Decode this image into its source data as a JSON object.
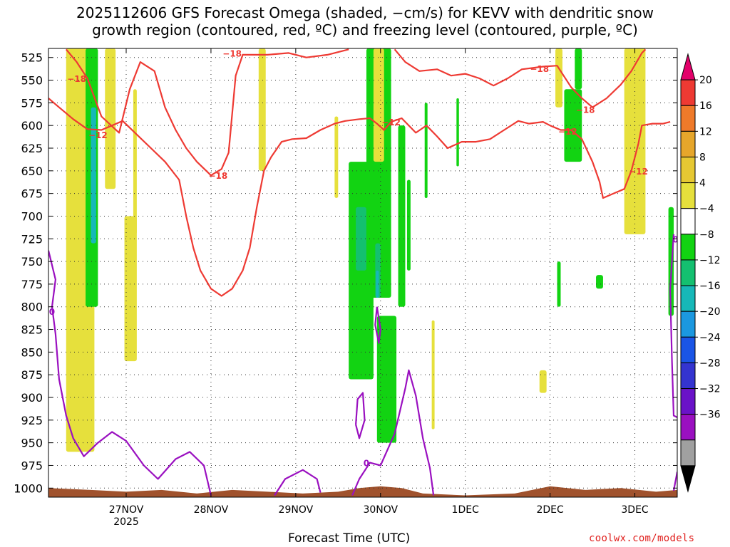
{
  "title": {
    "line1": "2025112606 GFS Forecast Omega (shaded, −cm/s) for KEVV with dendritic snow",
    "line2": "growth region (contoured, red, ºC) and freezing level (contoured, purple, ºC)"
  },
  "xlabel": "Forecast Time (UTC)",
  "credit": "coolwx.com/models",
  "chart_data": {
    "type": "heatmap",
    "y_axis": {
      "label": "",
      "scale": "pressure (hPa), inverted",
      "range": [
        1010,
        515
      ],
      "ticks": [
        525,
        550,
        575,
        600,
        625,
        650,
        675,
        700,
        725,
        750,
        775,
        800,
        825,
        850,
        875,
        900,
        925,
        950,
        975,
        1000
      ]
    },
    "x_axis": {
      "label": "Forecast Time (UTC)",
      "range_hours": [
        -22,
        156
      ],
      "ticks": [
        {
          "hour": 0,
          "label": "27NOV",
          "sublabel": "2025"
        },
        {
          "hour": 24,
          "label": "28NOV",
          "sublabel": ""
        },
        {
          "hour": 48,
          "label": "29NOV",
          "sublabel": ""
        },
        {
          "hour": 72,
          "label": "30NOV",
          "sublabel": ""
        },
        {
          "hour": 96,
          "label": "1DEC",
          "sublabel": ""
        },
        {
          "hour": 120,
          "label": "2DEC",
          "sublabel": ""
        },
        {
          "hour": 144,
          "label": "3DEC",
          "sublabel": ""
        }
      ]
    },
    "grid": true,
    "colorbar": {
      "labels": [
        "20",
        "16",
        "12",
        "8",
        "4",
        "−4",
        "−8",
        "−12",
        "−16",
        "−20",
        "−24",
        "−28",
        "−32",
        "−36"
      ],
      "colors": [
        "#e3006a",
        "#ee3a33",
        "#ef7a2a",
        "#e6a62b",
        "#e6c833",
        "#e6e03c",
        "#ffffff",
        "#12d312",
        "#14c070",
        "#17b8b8",
        "#1b98e0",
        "#1a55e6",
        "#3434d0",
        "#6a12c8",
        "#9a10c0",
        "#a0a0a0",
        "#000000"
      ]
    },
    "omega_areas": [
      {
        "color": "#e6e03c",
        "t0": -17,
        "t1": -9,
        "p0": 515,
        "p1": 960
      },
      {
        "color": "#12d312",
        "t0": -11.5,
        "t1": -8,
        "p0": 515,
        "p1": 800
      },
      {
        "color": "#17b8b8",
        "t0": -10,
        "t1": -8.5,
        "p0": 580,
        "p1": 730
      },
      {
        "color": "#e6e03c",
        "t0": -6,
        "t1": -3,
        "p0": 515,
        "p1": 670
      },
      {
        "color": "#e6e03c",
        "t0": -0.5,
        "t1": 3,
        "p0": 700,
        "p1": 860
      },
      {
        "color": "#e6e03c",
        "t0": 2,
        "t1": 3,
        "p0": 560,
        "p1": 720
      },
      {
        "color": "#e6e03c",
        "t0": 37.5,
        "t1": 39.5,
        "p0": 515,
        "p1": 650
      },
      {
        "color": "#e6e03c",
        "t0": 59,
        "t1": 60,
        "p0": 590,
        "p1": 680
      },
      {
        "color": "#12d312",
        "t0": 63,
        "t1": 70,
        "p0": 640,
        "p1": 880
      },
      {
        "color": "#14c070",
        "t0": 65,
        "t1": 68,
        "p0": 690,
        "p1": 760
      },
      {
        "color": "#12d312",
        "t0": 68,
        "t1": 75,
        "p0": 515,
        "p1": 790
      },
      {
        "color": "#14c070",
        "t0": 70.5,
        "t1": 72,
        "p0": 730,
        "p1": 790
      },
      {
        "color": "#17b8b8",
        "t0": 70.7,
        "t1": 71.5,
        "p0": 760,
        "p1": 790
      },
      {
        "color": "#e6e03c",
        "t0": 70,
        "t1": 73,
        "p0": 515,
        "p1": 640
      },
      {
        "color": "#12d312",
        "t0": 71,
        "t1": 76.5,
        "p0": 810,
        "p1": 950
      },
      {
        "color": "#12d312",
        "t0": 77,
        "t1": 79,
        "p0": 600,
        "p1": 800
      },
      {
        "color": "#12d312",
        "t0": 79.5,
        "t1": 80.5,
        "p0": 660,
        "p1": 760
      },
      {
        "color": "#12d312",
        "t0": 84.5,
        "t1": 85.3,
        "p0": 575,
        "p1": 680
      },
      {
        "color": "#e6e03c",
        "t0": 86.5,
        "t1": 87.3,
        "p0": 815,
        "p1": 935
      },
      {
        "color": "#12d312",
        "t0": 93.5,
        "t1": 94.2,
        "p0": 570,
        "p1": 645
      },
      {
        "color": "#e6e03c",
        "t0": 117,
        "t1": 119,
        "p0": 870,
        "p1": 895
      },
      {
        "color": "#e6e03c",
        "t0": 121.5,
        "t1": 123.5,
        "p0": 515,
        "p1": 580
      },
      {
        "color": "#12d312",
        "t0": 122,
        "t1": 123,
        "p0": 750,
        "p1": 800
      },
      {
        "color": "#12d312",
        "t0": 124,
        "t1": 129,
        "p0": 560,
        "p1": 640
      },
      {
        "color": "#12d312",
        "t0": 127,
        "t1": 129,
        "p0": 515,
        "p1": 560
      },
      {
        "color": "#12d312",
        "t0": 133,
        "t1": 135,
        "p0": 765,
        "p1": 780
      },
      {
        "color": "#e6e03c",
        "t0": 141,
        "t1": 147,
        "p0": 515,
        "p1": 720
      },
      {
        "color": "#12d312",
        "t0": 153.5,
        "t1": 155,
        "p0": 690,
        "p1": 810
      }
    ],
    "contours_dendritic": {
      "color": "#ee3a33",
      "labels": [
        "−18",
        "−18",
        "−12",
        "−18",
        "−12",
        "−18",
        "−12",
        "−18",
        "−12"
      ],
      "lines": [
        {
          "value": -18,
          "points": [
            [
              -17,
              516
            ],
            [
              -14,
              530
            ],
            [
              -11,
              548
            ],
            [
              -7,
              590
            ],
            [
              -2,
              608
            ],
            [
              1,
              560
            ],
            [
              4,
              530
            ],
            [
              8,
              540
            ],
            [
              11,
              580
            ],
            [
              14,
              605
            ],
            [
              17,
              625
            ],
            [
              20,
              640
            ],
            [
              24,
              655
            ],
            [
              27,
              648
            ],
            [
              29,
              630
            ],
            [
              31,
              545
            ],
            [
              33,
              522
            ],
            [
              40,
              522
            ],
            [
              46,
              520
            ],
            [
              51,
              525
            ],
            [
              57,
              522
            ],
            [
              63,
              516
            ]
          ]
        },
        {
          "value": -18,
          "points": [
            [
              76,
              516
            ],
            [
              79,
              530
            ],
            [
              83,
              540
            ],
            [
              88,
              538
            ],
            [
              92,
              545
            ],
            [
              96,
              543
            ],
            [
              100,
              548
            ],
            [
              104,
              556
            ],
            [
              108,
              548
            ],
            [
              112,
              538
            ],
            [
              118,
              535
            ],
            [
              122,
              534
            ],
            [
              126,
              558
            ],
            [
              129,
              570
            ],
            [
              132,
              580
            ],
            [
              136,
              570
            ],
            [
              140,
              555
            ],
            [
              143,
              540
            ],
            [
              146,
              520
            ],
            [
              147,
              516
            ]
          ]
        },
        {
          "value": -12,
          "points": [
            [
              -22,
              570
            ],
            [
              -19,
              580
            ],
            [
              -15,
              593
            ],
            [
              -11,
              604
            ],
            [
              -7,
              605
            ],
            [
              -4,
              600
            ],
            [
              -1,
              595
            ],
            [
              3,
              610
            ],
            [
              7,
              625
            ],
            [
              11,
              640
            ],
            [
              15,
              660
            ],
            [
              17,
              700
            ],
            [
              19,
              735
            ],
            [
              21,
              760
            ],
            [
              24,
              780
            ],
            [
              27,
              788
            ],
            [
              30,
              780
            ],
            [
              33,
              760
            ],
            [
              35,
              735
            ],
            [
              37,
              690
            ],
            [
              39,
              650
            ],
            [
              41,
              635
            ],
            [
              44,
              618
            ],
            [
              47,
              615
            ],
            [
              51,
              614
            ],
            [
              55,
              605
            ],
            [
              59,
              598
            ],
            [
              62,
              595
            ],
            [
              66,
              593
            ],
            [
              69,
              592
            ],
            [
              71,
              598
            ],
            [
              73,
              605
            ],
            [
              75,
              596
            ],
            [
              78,
              592
            ],
            [
              82,
              608
            ],
            [
              85,
              600
            ],
            [
              88,
              612
            ],
            [
              91,
              625
            ],
            [
              95,
              618
            ],
            [
              99,
              618
            ],
            [
              103,
              615
            ],
            [
              107,
              605
            ],
            [
              111,
              595
            ],
            [
              114,
              598
            ],
            [
              118,
              596
            ],
            [
              120,
              600
            ],
            [
              123,
              605
            ],
            [
              126,
              605
            ],
            [
              129,
              615
            ],
            [
              132,
              640
            ],
            [
              134,
              662
            ],
            [
              135,
              680
            ],
            [
              138,
              675
            ],
            [
              141,
              670
            ],
            [
              143,
              650
            ],
            [
              145,
              620
            ],
            [
              146,
              600
            ],
            [
              149,
              598
            ],
            [
              152,
              598
            ],
            [
              154,
              596
            ]
          ]
        }
      ]
    },
    "contours_freezing": {
      "color": "#9a10c0",
      "labels": [
        "0",
        "0",
        "0"
      ],
      "lines": [
        {
          "value": 0,
          "points": [
            [
              -22,
              738
            ],
            [
              -20,
              770
            ],
            [
              -21,
              800
            ],
            [
              -20,
              830
            ],
            [
              -19,
              880
            ],
            [
              -17,
              920
            ],
            [
              -15,
              945
            ],
            [
              -12,
              965
            ],
            [
              -8,
              950
            ],
            [
              -4,
              938
            ],
            [
              0,
              948
            ],
            [
              5,
              975
            ],
            [
              9,
              990
            ],
            [
              14,
              968
            ],
            [
              18,
              960
            ],
            [
              22,
              975
            ],
            [
              24,
              1008
            ]
          ]
        },
        {
          "value": 0,
          "points": [
            [
              42,
              1008
            ],
            [
              45,
              990
            ],
            [
              50,
              980
            ],
            [
              54,
              990
            ],
            [
              55,
              1005
            ]
          ]
        },
        {
          "value": 0,
          "points": [
            [
              64,
              1008
            ],
            [
              66,
              990
            ],
            [
              69,
              972
            ],
            [
              72,
              975
            ],
            [
              76,
              940
            ],
            [
              79,
              890
            ],
            [
              80,
              870
            ],
            [
              82,
              898
            ],
            [
              84,
              945
            ],
            [
              86,
              978
            ],
            [
              87,
              1008
            ]
          ]
        },
        {
          "value": 0,
          "points": [
            [
              65,
              930
            ],
            [
              65.5,
              902
            ],
            [
              67,
              895
            ],
            [
              67.5,
              925
            ],
            [
              66,
              945
            ],
            [
              65,
              930
            ]
          ]
        },
        {
          "value": 0,
          "points": [
            [
              71,
              800
            ],
            [
              72,
              825
            ],
            [
              71.5,
              840
            ],
            [
              70.5,
              820
            ],
            [
              71,
              800
            ]
          ]
        },
        {
          "value": 0,
          "points": [
            [
              155,
              720
            ],
            [
              154,
              780
            ],
            [
              154.5,
              860
            ],
            [
              155,
              920
            ],
            [
              156,
              922
            ]
          ]
        },
        {
          "value": 0,
          "points": [
            [
              155,
              1003
            ],
            [
              156,
              982
            ]
          ]
        }
      ]
    },
    "terrain": {
      "color": "#a0522d",
      "top_pressure": [
        [
          -22,
          1000
        ],
        [
          -10,
          1002
        ],
        [
          0,
          1004
        ],
        [
          10,
          1002
        ],
        [
          20,
          1006
        ],
        [
          30,
          1002
        ],
        [
          40,
          1004
        ],
        [
          50,
          1006
        ],
        [
          60,
          1004
        ],
        [
          66,
          1000
        ],
        [
          72,
          998
        ],
        [
          78,
          1000
        ],
        [
          84,
          1006
        ],
        [
          96,
          1008
        ],
        [
          110,
          1006
        ],
        [
          120,
          998
        ],
        [
          130,
          1002
        ],
        [
          140,
          1000
        ],
        [
          150,
          1004
        ],
        [
          156,
          1002
        ]
      ]
    }
  }
}
